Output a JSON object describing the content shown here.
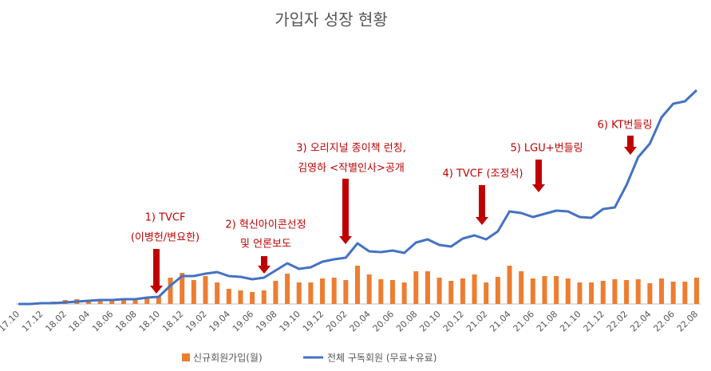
{
  "chart_data": {
    "type": "bar_line",
    "title": "가입자 성장 현황",
    "categories": [
      "17.10",
      null,
      "17.12",
      null,
      "18.02",
      null,
      "18.04",
      null,
      "18.06",
      null,
      "18.08",
      null,
      "18.10",
      null,
      "18.12",
      null,
      "19.02",
      null,
      "19.04",
      null,
      "19.06",
      null,
      "19.08",
      null,
      "19.10",
      null,
      "19.12",
      null,
      "20.02",
      null,
      "20.04",
      null,
      "20.06",
      null,
      "20.08",
      null,
      "20.10",
      null,
      "20.12",
      null,
      "21.02",
      null,
      "21.04",
      null,
      "21.06",
      null,
      "21.08",
      null,
      "21.10",
      null,
      "21.12",
      null,
      "22.02",
      null,
      "22.04",
      null,
      "22.06",
      null,
      "22.08"
    ],
    "series": [
      {
        "name": "신규회원가입(월)",
        "type": "bar",
        "color": "#ed7d31",
        "values": [
          0,
          1,
          2,
          3,
          5,
          6,
          5,
          5,
          5,
          6,
          7,
          8,
          10,
          33,
          39,
          30,
          35,
          27,
          19,
          17,
          15,
          17,
          29,
          38,
          27,
          27,
          32,
          33,
          30,
          48,
          37,
          31,
          30,
          27,
          41,
          41,
          33,
          29,
          32,
          37,
          27,
          34,
          48,
          41,
          32,
          35,
          35,
          32,
          27,
          27,
          29,
          31,
          30,
          31,
          26,
          32,
          28,
          28,
          33
        ]
      },
      {
        "name": "전체 구독회원 (무료+유료)",
        "type": "line",
        "color": "#4472c4",
        "values": [
          0,
          0,
          1,
          1,
          2,
          3,
          4,
          5,
          5,
          6,
          6,
          8,
          9,
          23,
          35,
          35,
          38,
          40,
          35,
          34,
          31,
          33,
          42,
          51,
          44,
          46,
          53,
          56,
          58,
          76,
          66,
          65,
          67,
          64,
          77,
          81,
          74,
          72,
          82,
          86,
          81,
          91,
          116,
          114,
          109,
          113,
          117,
          116,
          109,
          108,
          119,
          121,
          149,
          184,
          201,
          234,
          251,
          254,
          268
        ]
      }
    ],
    "ylim": [
      0,
      300
    ],
    "legend": "bottom",
    "annotations": [
      {
        "lines": [
          "1)  TVCF",
          "(이병헌/변요한)"
        ],
        "color": "#c00000"
      },
      {
        "lines": [
          "2)  혁신아이콘선정",
          "및 언론보도"
        ],
        "color": "#c00000"
      },
      {
        "lines": [
          "3) 오리지널 종이책 런칭,",
          "김영하 <작별인사>공개"
        ],
        "color": "#c00000"
      },
      {
        "lines": [
          "4) TVCF (조정석)"
        ],
        "color": "#c00000"
      },
      {
        "lines": [
          "5) LGU+번들링"
        ],
        "color": "#c00000"
      },
      {
        "lines": [
          "6) KT번들링"
        ],
        "color": "#c00000"
      }
    ]
  }
}
